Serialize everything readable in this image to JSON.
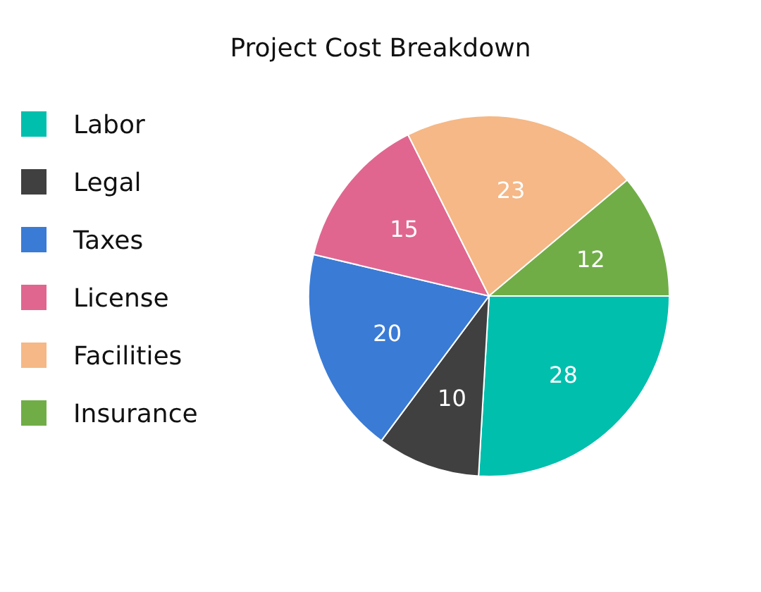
{
  "chart_data": {
    "type": "pie",
    "title": "Project Cost Breakdown",
    "categories": [
      "Labor",
      "Legal",
      "Taxes",
      "License",
      "Facilities",
      "Insurance"
    ],
    "values": [
      28,
      10,
      20,
      15,
      23,
      12
    ],
    "colors": [
      "#00bfad",
      "#404040",
      "#3a7bd5",
      "#e06690",
      "#f5b886",
      "#70ad47"
    ],
    "data_labels": true,
    "legend": "left"
  }
}
